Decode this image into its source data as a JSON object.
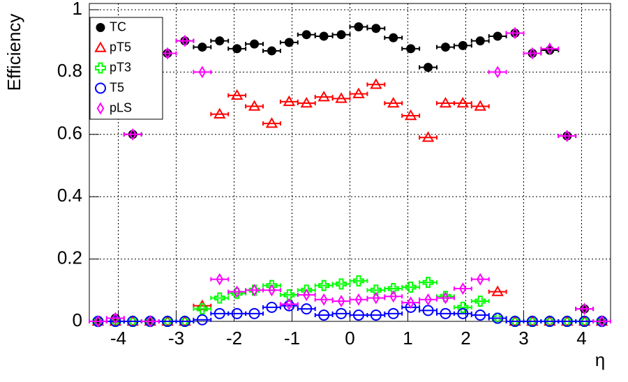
{
  "chart_data": {
    "type": "scatter",
    "x_label": "η",
    "y_label": "Efficiency",
    "x": [
      -4.35,
      -4.05,
      -3.75,
      -3.45,
      -3.15,
      -2.85,
      -2.55,
      -2.25,
      -1.95,
      -1.65,
      -1.35,
      -1.05,
      -0.75,
      -0.45,
      -0.15,
      0.15,
      0.45,
      0.75,
      1.05,
      1.35,
      1.65,
      1.95,
      2.25,
      2.55,
      2.85,
      3.15,
      3.45,
      3.75,
      4.05,
      4.35
    ],
    "series": [
      {
        "name": "TC",
        "color": "#000000",
        "marker": "circle-filled",
        "values": [
          0,
          0.01,
          0.6,
          0,
          0.86,
          0.9,
          0.88,
          0.9,
          0.875,
          0.89,
          0.868,
          0.895,
          0.92,
          0.915,
          0.92,
          0.945,
          0.94,
          0.91,
          0.875,
          0.815,
          0.88,
          0.885,
          0.9,
          0.915,
          0.925,
          0.86,
          0.87,
          0.595,
          0.04,
          0
        ]
      },
      {
        "name": "pT5",
        "color": "#ff0000",
        "marker": "triangle-open",
        "values": [
          0,
          0,
          0,
          0,
          0,
          0,
          0.05,
          0.665,
          0.725,
          0.69,
          0.635,
          0.705,
          0.7,
          0.72,
          0.715,
          0.73,
          0.76,
          0.7,
          0.66,
          0.59,
          0.7,
          0.7,
          0.69,
          0.095,
          0,
          0,
          0,
          0,
          0,
          0
        ]
      },
      {
        "name": "pT3",
        "color": "#00ff00",
        "marker": "cross-open",
        "values": [
          0,
          0,
          0,
          0,
          0,
          0,
          0.04,
          0.075,
          0.09,
          0.1,
          0.115,
          0.085,
          0.1,
          0.115,
          0.12,
          0.13,
          0.1,
          0.105,
          0.11,
          0.125,
          0.08,
          0.045,
          0.065,
          0.01,
          0,
          0,
          0,
          0,
          0,
          0
        ]
      },
      {
        "name": "T5",
        "color": "#0000ff",
        "marker": "circle-open",
        "values": [
          0,
          0,
          0,
          0,
          0,
          0,
          0.005,
          0.025,
          0.025,
          0.025,
          0.045,
          0.05,
          0.04,
          0.02,
          0.025,
          0.02,
          0.02,
          0.025,
          0.045,
          0.035,
          0.025,
          0.025,
          0.02,
          0.01,
          0,
          0,
          0,
          0,
          0,
          0
        ]
      },
      {
        "name": "pLS",
        "color": "#ff00ff",
        "marker": "diamond-open",
        "values": [
          0,
          0.01,
          0.6,
          0,
          0.86,
          0.9,
          0.8,
          0.135,
          0.095,
          0.1,
          0.1,
          0.055,
          0.085,
          0.07,
          0.065,
          0.07,
          0.075,
          0.08,
          0.06,
          0.07,
          0.075,
          0.105,
          0.135,
          0.8,
          0.925,
          0.86,
          0.875,
          0.595,
          0.04,
          0
        ]
      }
    ],
    "xlim": [
      -4.5,
      4.5
    ],
    "ylim": [
      0,
      1.02
    ],
    "xticks": [
      -4,
      -3,
      -2,
      -1,
      0,
      1,
      2,
      3,
      4
    ],
    "yticks": [
      0,
      0.2,
      0.4,
      0.6,
      0.8,
      1
    ],
    "grid": true,
    "legend": "top-left"
  }
}
